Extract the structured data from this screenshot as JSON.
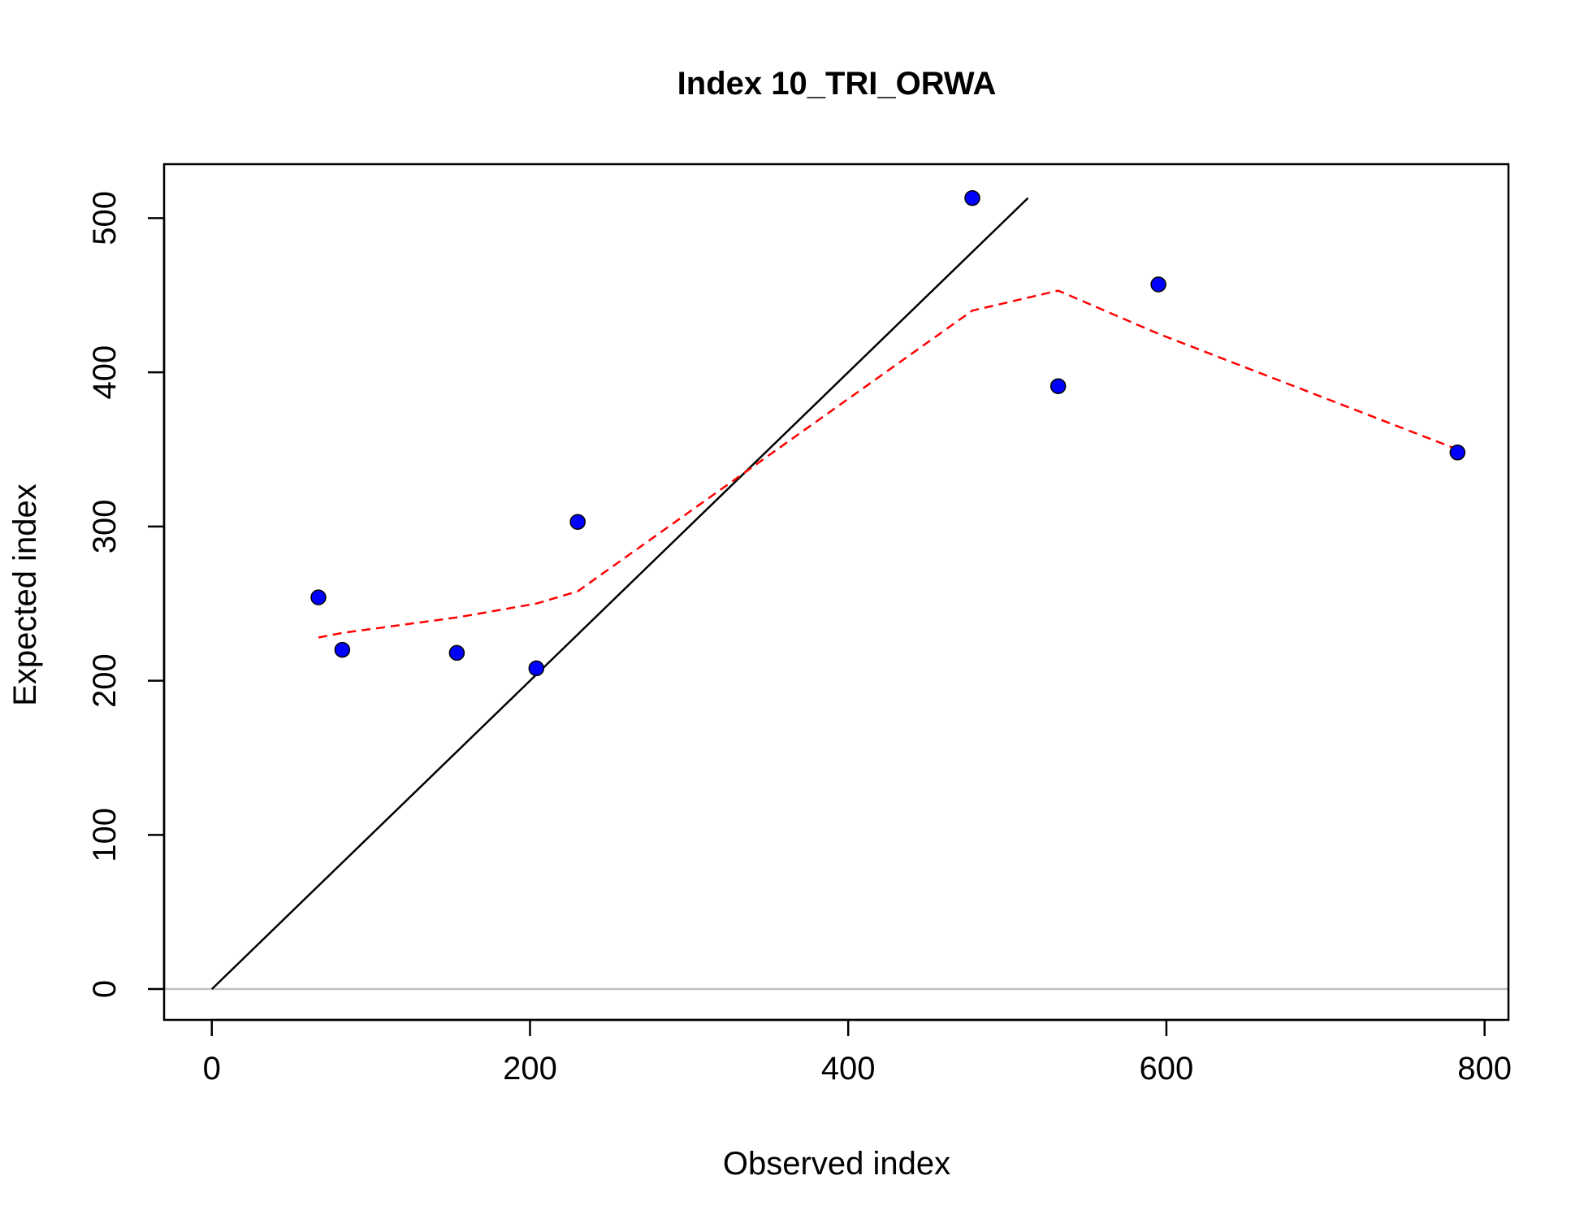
{
  "chart_data": {
    "type": "scatter",
    "title": "Index 10_TRI_ORWA",
    "xlabel": "Observed index",
    "ylabel": "Expected index",
    "xlim": [
      -30,
      815
    ],
    "ylim": [
      -20,
      535
    ],
    "x_ticks": [
      0,
      200,
      400,
      600,
      800
    ],
    "y_ticks": [
      0,
      100,
      200,
      300,
      400,
      500
    ],
    "grid": false,
    "legend": "none",
    "series": [
      {
        "kind": "points",
        "color": "#0000ff",
        "x": [
          67,
          82,
          154,
          204,
          230,
          478,
          532,
          595,
          783
        ],
        "y": [
          254,
          220,
          218,
          208,
          303,
          513,
          391,
          457,
          348
        ]
      },
      {
        "kind": "reference-line",
        "style": "solid",
        "color": "#000000",
        "x": [
          0,
          513
        ],
        "y": [
          0,
          513
        ]
      },
      {
        "kind": "smoother",
        "style": "dashed",
        "color": "#ff0000",
        "x": [
          67,
          82,
          154,
          204,
          230,
          478,
          532,
          595,
          783
        ],
        "y": [
          228,
          231,
          241,
          250,
          258,
          440,
          453,
          425,
          350
        ]
      },
      {
        "kind": "zero-line",
        "style": "solid",
        "color": "#bebebe",
        "y": 0
      }
    ]
  }
}
